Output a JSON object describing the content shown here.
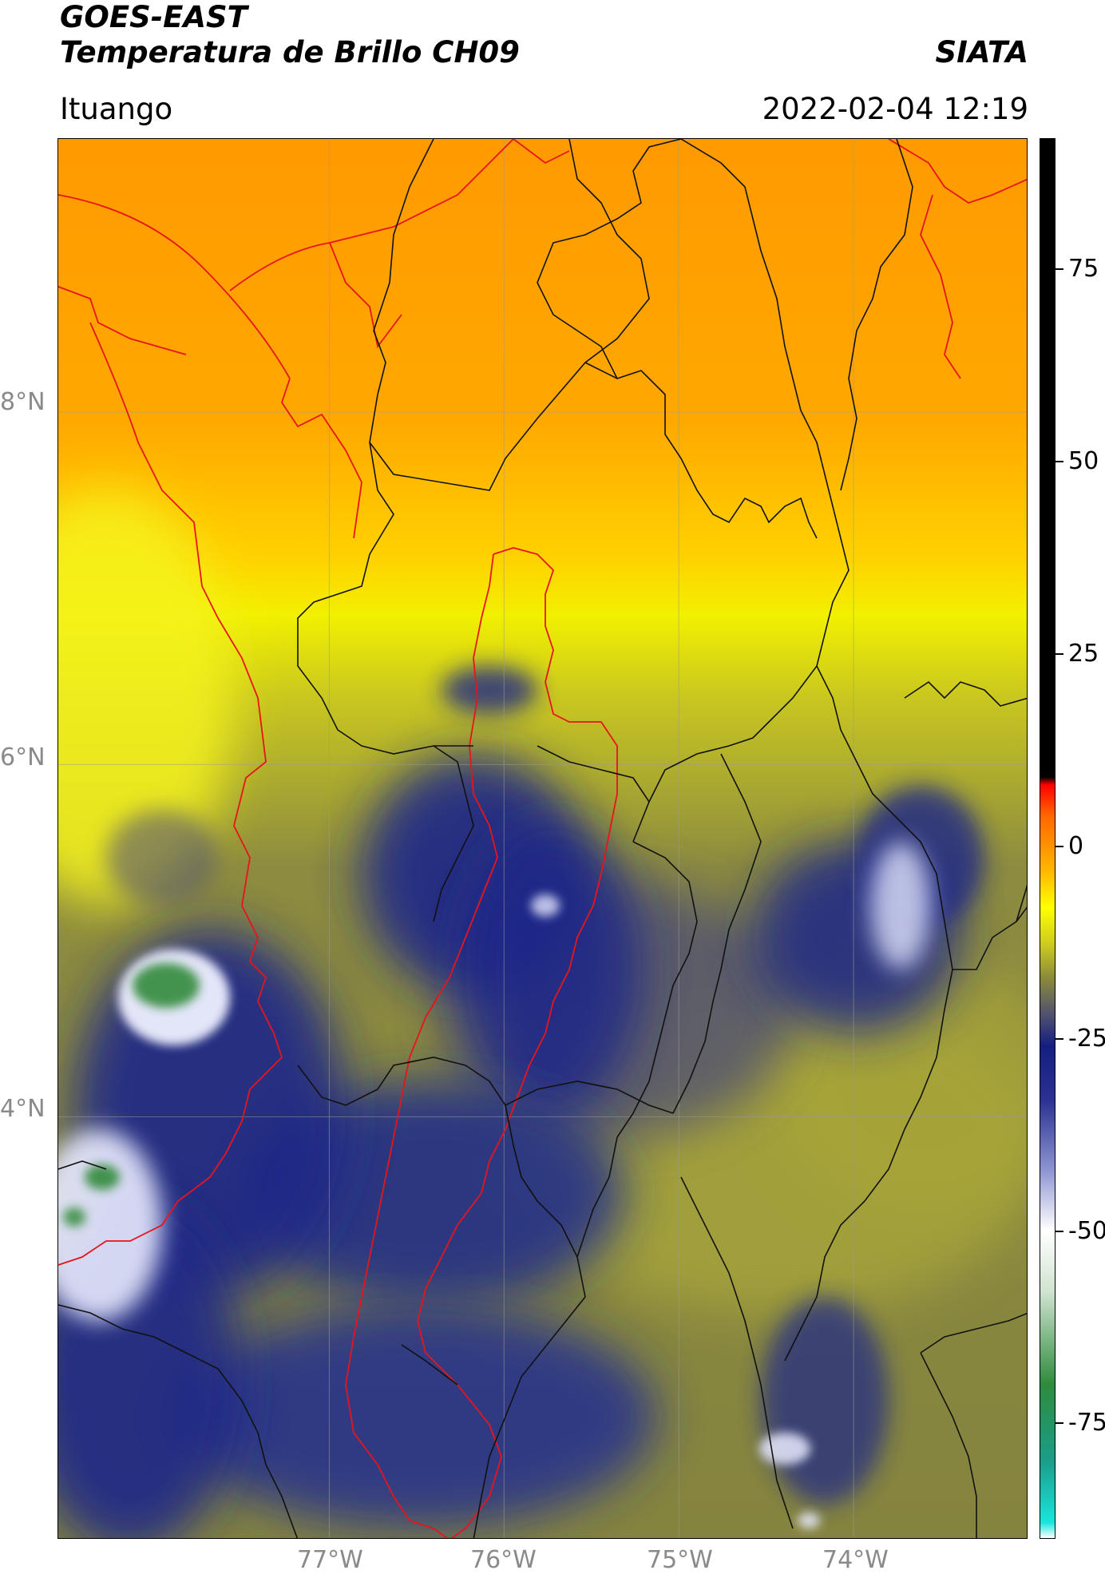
{
  "header": {
    "title_line1": "GOES-EAST",
    "title_line2": "Temperatura de Brillo CH09",
    "brand": "SIATA",
    "region": "Ituango",
    "datetime": "2022-02-04 12:19"
  },
  "map": {
    "lat_labels": [
      "8°N",
      "6°N",
      "4°N"
    ],
    "lon_labels": [
      "77°W",
      "76°W",
      "75°W",
      "74°W"
    ],
    "lat_values": [
      8,
      6,
      4
    ],
    "lon_values": [
      -77,
      -76,
      -75,
      -74
    ],
    "lon_range": [
      -78.55,
      -73.0
    ],
    "lat_range": [
      1.6,
      9.55
    ],
    "coastline_color": "#e8141a",
    "border_color": "#111111",
    "grid_color": "#9a9a9a"
  },
  "colorbar": {
    "tick_values": [
      75,
      50,
      25,
      0,
      -25,
      -50,
      -75
    ],
    "tick_labels": [
      "75",
      "50",
      "25",
      "0",
      "-25",
      "-50",
      "-75"
    ],
    "vmin": -90,
    "vmax": 92,
    "stops": [
      {
        "value": -90,
        "color": "#ffffff"
      },
      {
        "value": -88,
        "color": "#19e6dc"
      },
      {
        "value": -80,
        "color": "#1a9e8a"
      },
      {
        "value": -70,
        "color": "#2e8b3c"
      },
      {
        "value": -58,
        "color": "#cfe3cf"
      },
      {
        "value": -50,
        "color": "#ffffff"
      },
      {
        "value": -42,
        "color": "#8b93d0"
      },
      {
        "value": -33,
        "color": "#2a3192"
      },
      {
        "value": -26,
        "color": "#141f80"
      },
      {
        "value": -22,
        "color": "#4f5070"
      },
      {
        "value": -17,
        "color": "#8e8c3a"
      },
      {
        "value": -13,
        "color": "#c9c820"
      },
      {
        "value": -8,
        "color": "#ffff00"
      },
      {
        "value": -3,
        "color": "#ffb400"
      },
      {
        "value": 4,
        "color": "#ff6600"
      },
      {
        "value": 8,
        "color": "#ff0000"
      },
      {
        "value": 9,
        "color": "#000000"
      },
      {
        "value": 92,
        "color": "#000000"
      }
    ]
  }
}
